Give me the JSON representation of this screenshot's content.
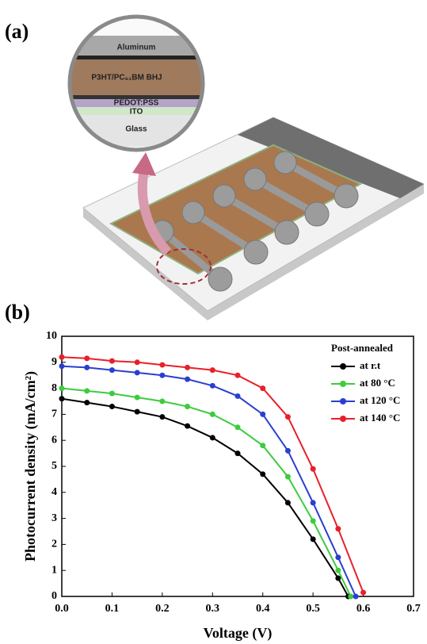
{
  "panel_a": {
    "label": "(a)",
    "layers": [
      "Aluminum",
      "P3HT/PC₆₁BM BHJ",
      "PEDOT:PSS",
      "ITO",
      "Glass"
    ]
  },
  "panel_b": {
    "label": "(b)"
  },
  "chart_data": {
    "type": "line",
    "x_label": "Voltage (V)",
    "y_label": "Photocurrent density (mA/cm²)",
    "legend_title": "Post-annealed",
    "legend": "upper right",
    "xlim": [
      0,
      0.7
    ],
    "xticks": [
      {
        "value": 0,
        "label": "0.0"
      },
      0.1,
      0.2,
      0.3,
      0.4,
      0.5,
      0.6,
      0.7
    ],
    "ylim": [
      0,
      10
    ],
    "yticks": [
      0,
      1,
      2,
      3,
      4,
      5,
      6,
      7,
      8,
      9,
      10
    ],
    "series": [
      {
        "name": "at r.t",
        "color": "#000000",
        "x": [
          0,
          0.05,
          0.1,
          0.15,
          0.2,
          0.25,
          0.3,
          0.35,
          0.4,
          0.45,
          0.5,
          0.55,
          0.57
        ],
        "values": [
          7.6,
          7.45,
          7.3,
          7.1,
          6.9,
          6.55,
          6.1,
          5.5,
          4.7,
          3.6,
          2.2,
          0.7,
          0
        ]
      },
      {
        "name": "at 80 °C",
        "color": "#3ccc3c",
        "x": [
          0,
          0.05,
          0.1,
          0.15,
          0.2,
          0.25,
          0.3,
          0.35,
          0.4,
          0.45,
          0.5,
          0.55,
          0.575
        ],
        "values": [
          8.0,
          7.9,
          7.8,
          7.65,
          7.5,
          7.3,
          7.0,
          6.5,
          5.8,
          4.6,
          2.9,
          1.0,
          0
        ]
      },
      {
        "name": "at 120 °C",
        "color": "#2a3fd0",
        "x": [
          0,
          0.05,
          0.1,
          0.15,
          0.2,
          0.25,
          0.3,
          0.35,
          0.4,
          0.45,
          0.5,
          0.55,
          0.585
        ],
        "values": [
          8.85,
          8.8,
          8.7,
          8.6,
          8.5,
          8.35,
          8.1,
          7.7,
          7.0,
          5.6,
          3.6,
          1.5,
          0
        ]
      },
      {
        "name": "at 140 °C",
        "color": "#e8202a",
        "x": [
          0,
          0.05,
          0.1,
          0.15,
          0.2,
          0.25,
          0.3,
          0.35,
          0.4,
          0.45,
          0.5,
          0.55,
          0.6
        ],
        "values": [
          9.2,
          9.15,
          9.05,
          9.0,
          8.9,
          8.8,
          8.7,
          8.5,
          8.0,
          6.9,
          4.9,
          2.6,
          0.15
        ]
      }
    ]
  }
}
